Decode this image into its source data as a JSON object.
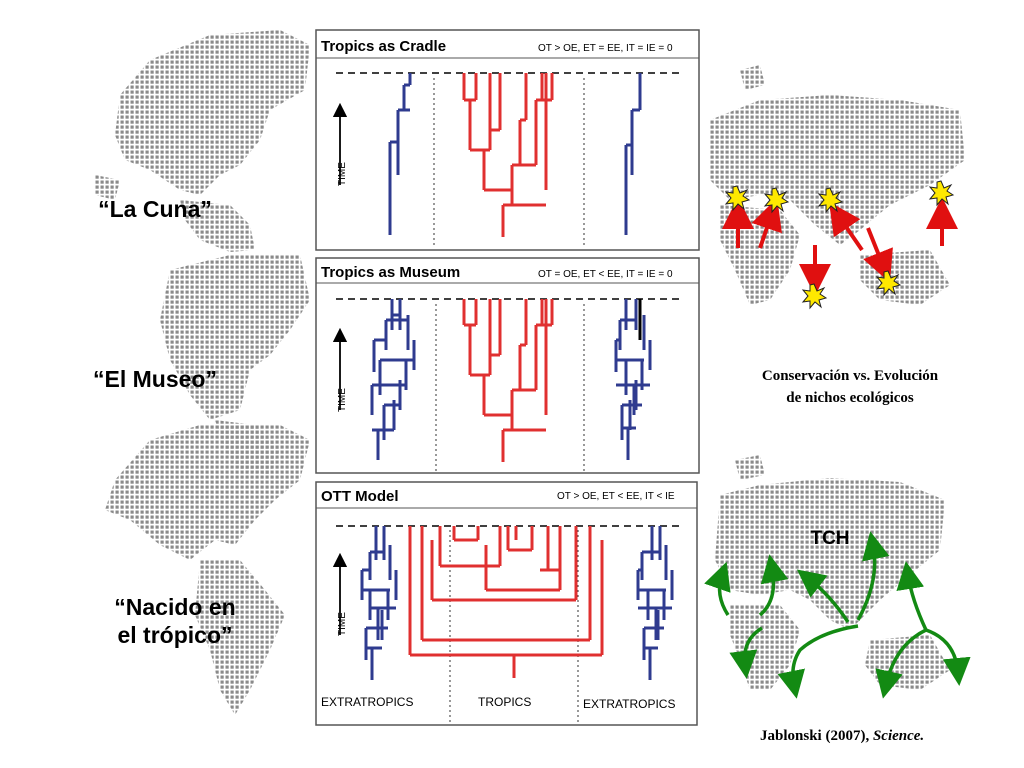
{
  "labels": {
    "cradle": "“La Cuna”",
    "museum": "“El Museo”",
    "born_line1": "“Nacido en",
    "born_line2": "el trópico”"
  },
  "panels": [
    {
      "title": "Tropics as Cradle",
      "equation": "OT > OE, ET = EE, IT = IE = 0",
      "time_label": "TIME"
    },
    {
      "title": "Tropics as Museum",
      "equation": "OT = OE, ET < EE, IT = IE = 0",
      "time_label": "TIME"
    },
    {
      "title": "OTT Model",
      "equation": "OT > OE, ET < EE, IT < IE",
      "time_label": "TIME"
    }
  ],
  "zones": {
    "left": "EXTRATROPICS",
    "center": "TROPICS",
    "right": "EXTRATROPICS"
  },
  "niche_caption": {
    "line1": "Conservación vs. Evolución",
    "line2": "de nichos ecológicos"
  },
  "tch_label": "TCH",
  "citation": {
    "authors": "Jablonski (2007), ",
    "journal": "Science."
  },
  "colors": {
    "tropics_red": "#e03030",
    "extratropics_blue": "#2f3b8f",
    "arrow_red": "#e01010",
    "arrow_green": "#138a13",
    "map_dots": "#8a8a8a"
  }
}
